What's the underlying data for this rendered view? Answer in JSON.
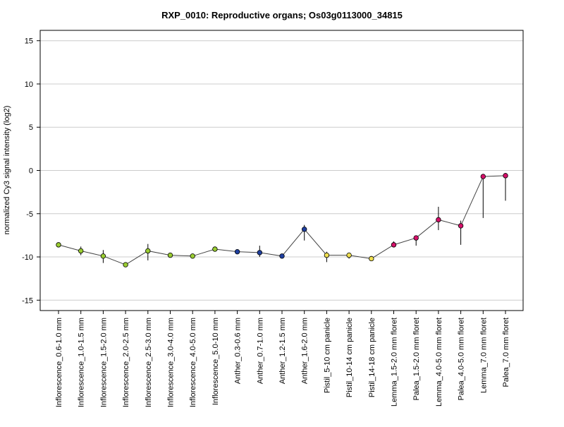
{
  "chart_data": {
    "type": "line",
    "title": "RXP_0010: Reproductive organs; Os03g0113000_34815",
    "xlabel": "",
    "ylabel": "normalized Cy3 signal intensity (log2)",
    "ylim": [
      -16.2,
      16.2
    ],
    "yticks": [
      -15,
      -10,
      -5,
      0,
      5,
      10,
      15
    ],
    "grid": true,
    "categories": [
      "Inflorescence_0.6-1.0 mm",
      "Inflorescence_1.0-1.5 mm",
      "Inflorescence_1.5-2.0 mm",
      "Inflorescence_2.0-2.5 mm",
      "Inflorescence_2.5-3.0 mm",
      "Inflorescence_3.0-4.0 mm",
      "Inflorescence_4.0-5.0 mm",
      "Inflorescence_5.0-10 mm",
      "Anther_0.3-0.6 mm",
      "Anther_0.7-1.0 mm",
      "Anther_1.2-1.5 mm",
      "Anther_1.6-2.0 mm",
      "Pistil_5-10 cm panicle",
      "Pistil_10-14 cm panicle",
      "Pistil_14-18 cm panicle",
      "Lemma_1.5-2.0 mm floret",
      "Palea_1.5-2.0 mm floret",
      "Lemma_4.0-5.0 mm floret",
      "Palea_4.0-5.0 mm floret",
      "Lemma_7.0 mm floret",
      "Palea_7.0 mm floret"
    ],
    "values": [
      -8.6,
      -9.3,
      -9.9,
      -10.9,
      -9.3,
      -9.8,
      -9.9,
      -9.1,
      -9.4,
      -9.5,
      -9.9,
      -6.8,
      -9.8,
      -9.8,
      -10.2,
      -8.6,
      -7.8,
      -5.7,
      -6.4,
      -0.7,
      -0.6
    ],
    "error_low": [
      -8.8,
      -9.8,
      -10.7,
      -11.0,
      -10.4,
      -9.9,
      -10.0,
      -9.2,
      -9.6,
      -10.0,
      -10.0,
      -8.1,
      -10.6,
      -10.2,
      -10.4,
      -8.9,
      -8.7,
      -6.9,
      -8.6,
      -5.5,
      -3.5
    ],
    "error_high": [
      -8.4,
      -8.8,
      -9.2,
      -10.7,
      -8.5,
      -9.7,
      -9.8,
      -8.9,
      -9.2,
      -8.7,
      -9.8,
      -6.3,
      -9.4,
      -9.5,
      -9.9,
      -8.2,
      -7.6,
      -4.2,
      -5.8,
      -0.4,
      -0.3
    ],
    "point_colors": [
      "#9acd32",
      "#9acd32",
      "#9acd32",
      "#9acd32",
      "#9acd32",
      "#9acd32",
      "#9acd32",
      "#9acd32",
      "#1f3f9f",
      "#1f3f9f",
      "#1f3f9f",
      "#1f3f9f",
      "#f0e050",
      "#f0e050",
      "#f0e050",
      "#d6106a",
      "#d6106a",
      "#d6106a",
      "#d6106a",
      "#d6106a",
      "#d6106a"
    ],
    "line_color": "#444444",
    "grid_color": "#cccccc"
  }
}
